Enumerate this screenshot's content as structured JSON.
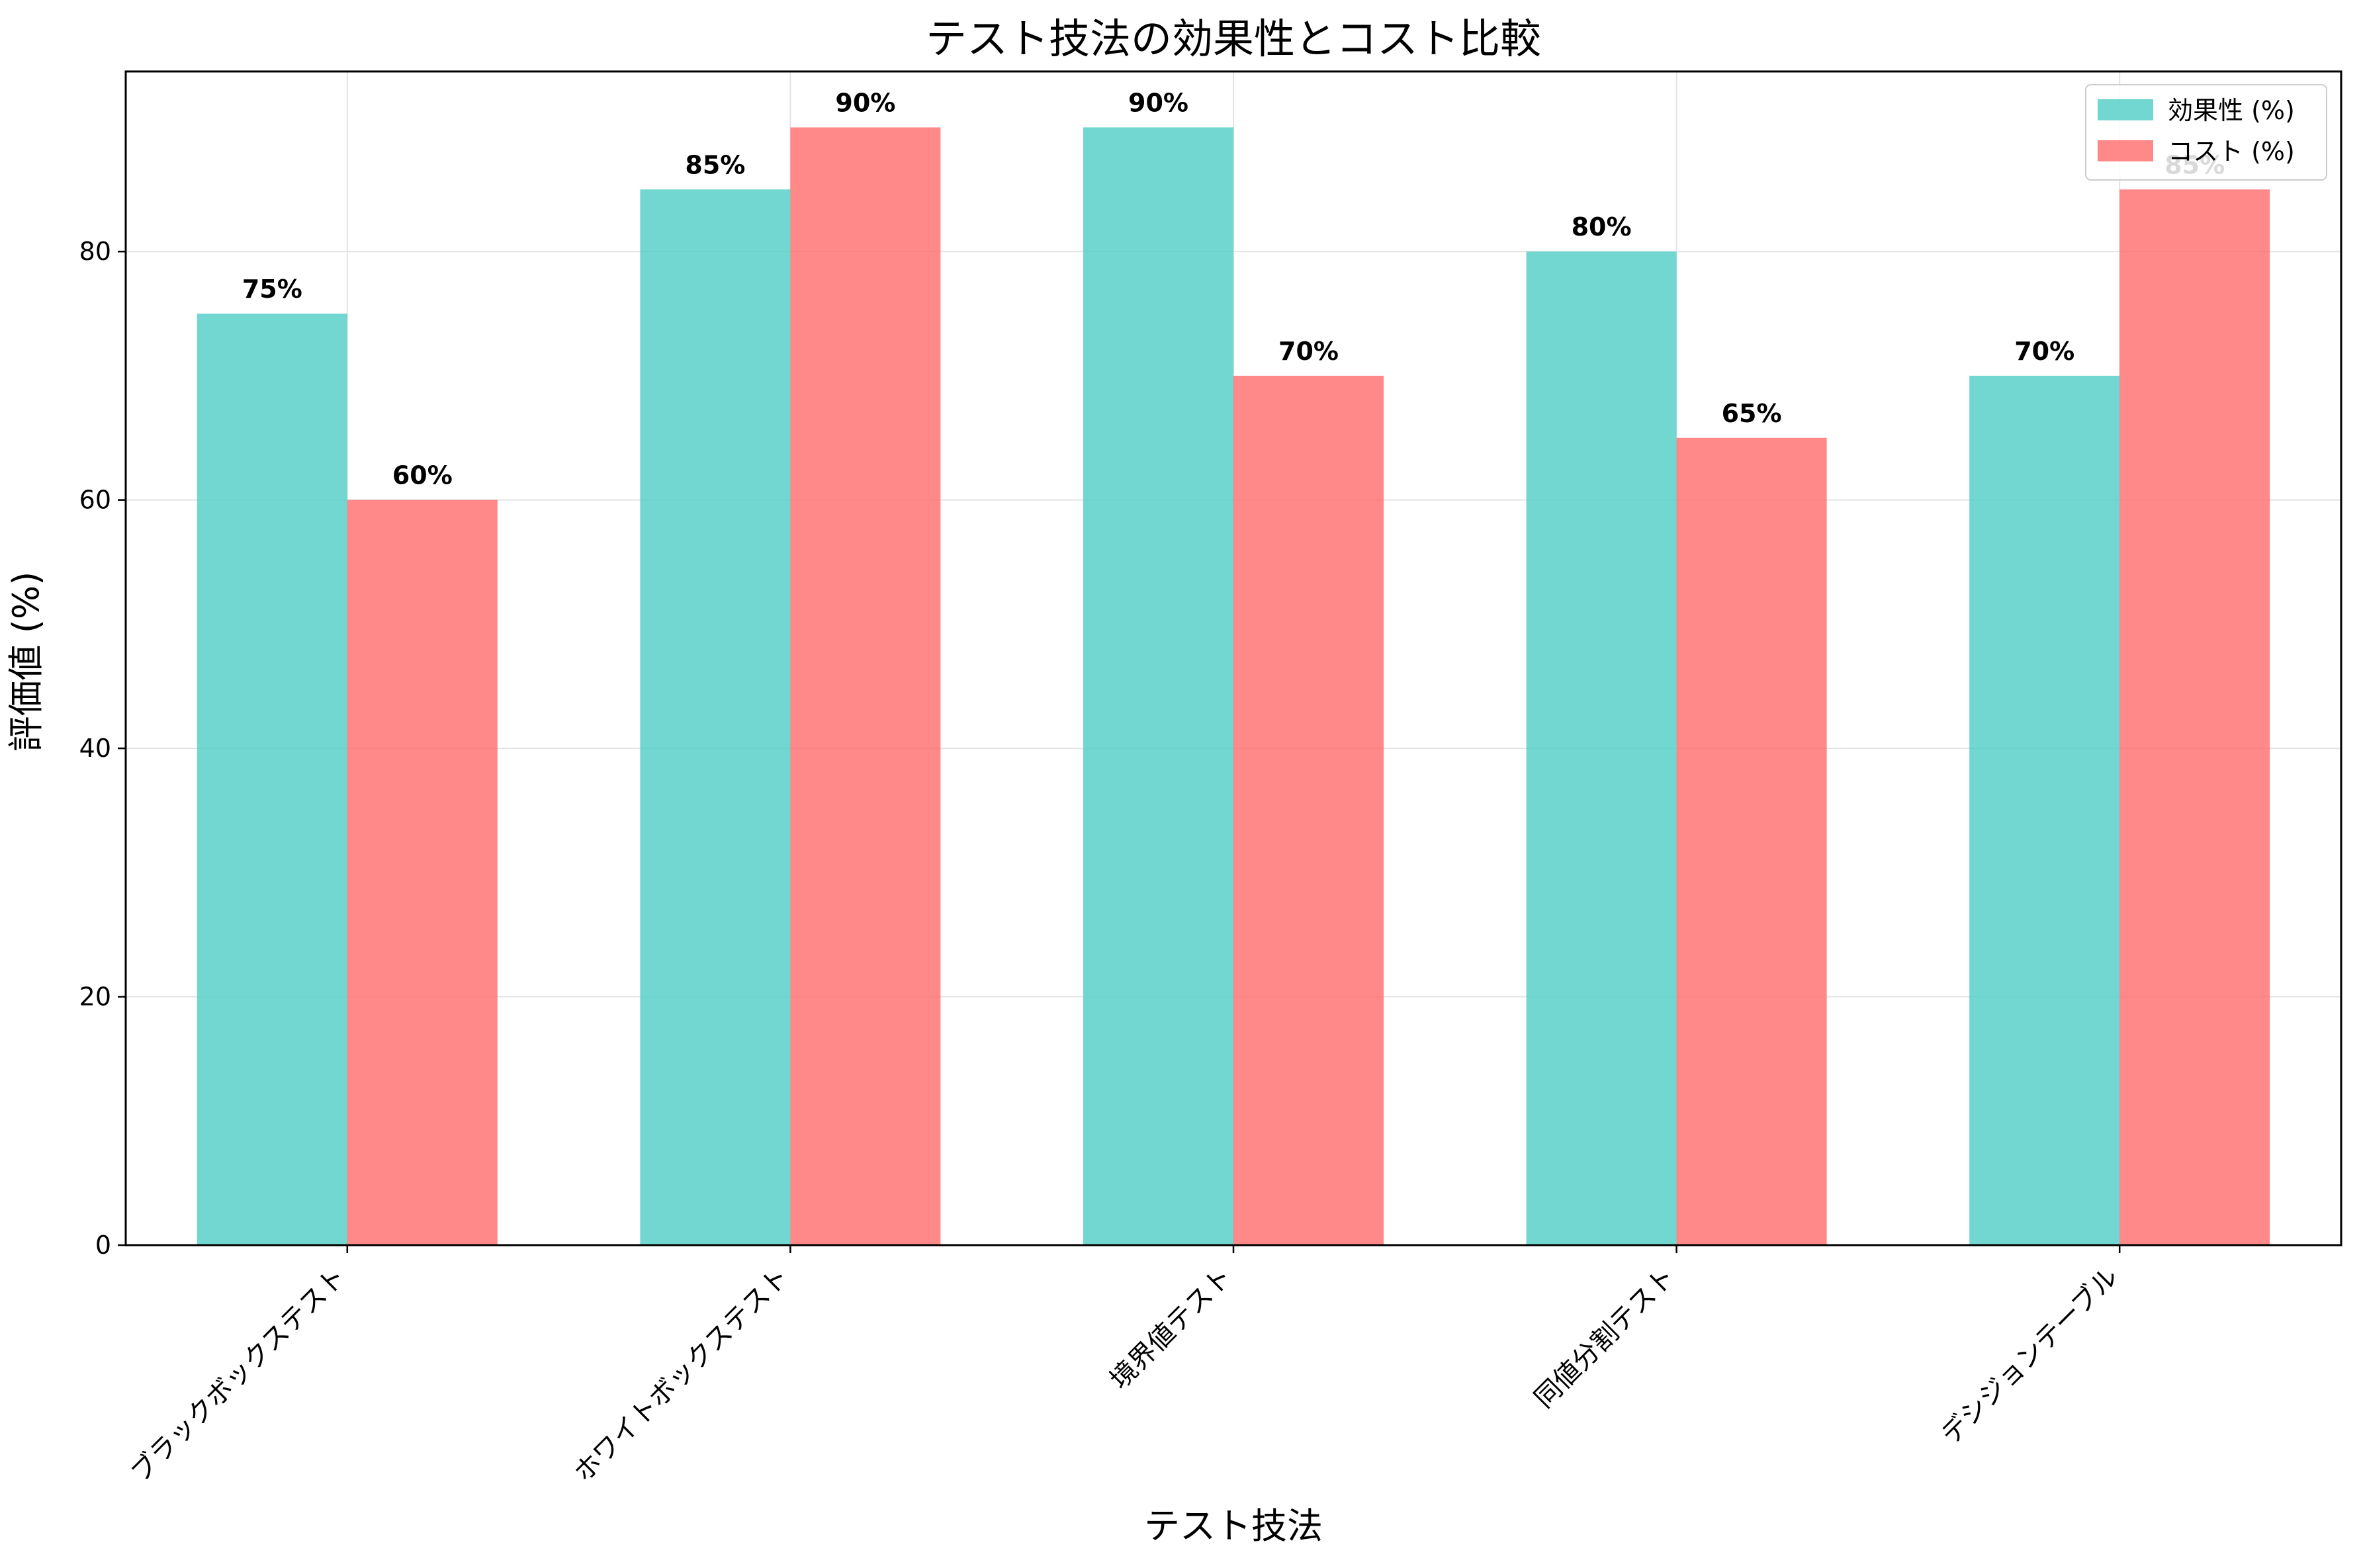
{
  "chart_data": {
    "type": "bar",
    "title": "テスト技法の効果性とコスト比較",
    "xlabel": "テスト技法",
    "ylabel": "評価値 (%)",
    "categories": [
      "ブラックボックステスト",
      "ホワイトボックステスト",
      "境界値テスト",
      "同値分割テスト",
      "デシジョンテーブル"
    ],
    "series": [
      {
        "name": "効果性 (%)",
        "values": [
          75,
          85,
          90,
          80,
          70
        ],
        "color": "#4ECDC4"
      },
      {
        "name": "コスト (%)",
        "values": [
          60,
          90,
          70,
          65,
          85
        ],
        "color": "#FF6B6B"
      }
    ],
    "value_labels": {
      "effect": [
        "75%",
        "85%",
        "90%",
        "80%",
        "70%"
      ],
      "cost": [
        "60%",
        "90%",
        "70%",
        "65%",
        "85%"
      ]
    },
    "ylim": [
      0,
      94.5
    ],
    "yticks": [
      0,
      20,
      40,
      60,
      80
    ],
    "grid": true,
    "legend_position": "top-right"
  }
}
